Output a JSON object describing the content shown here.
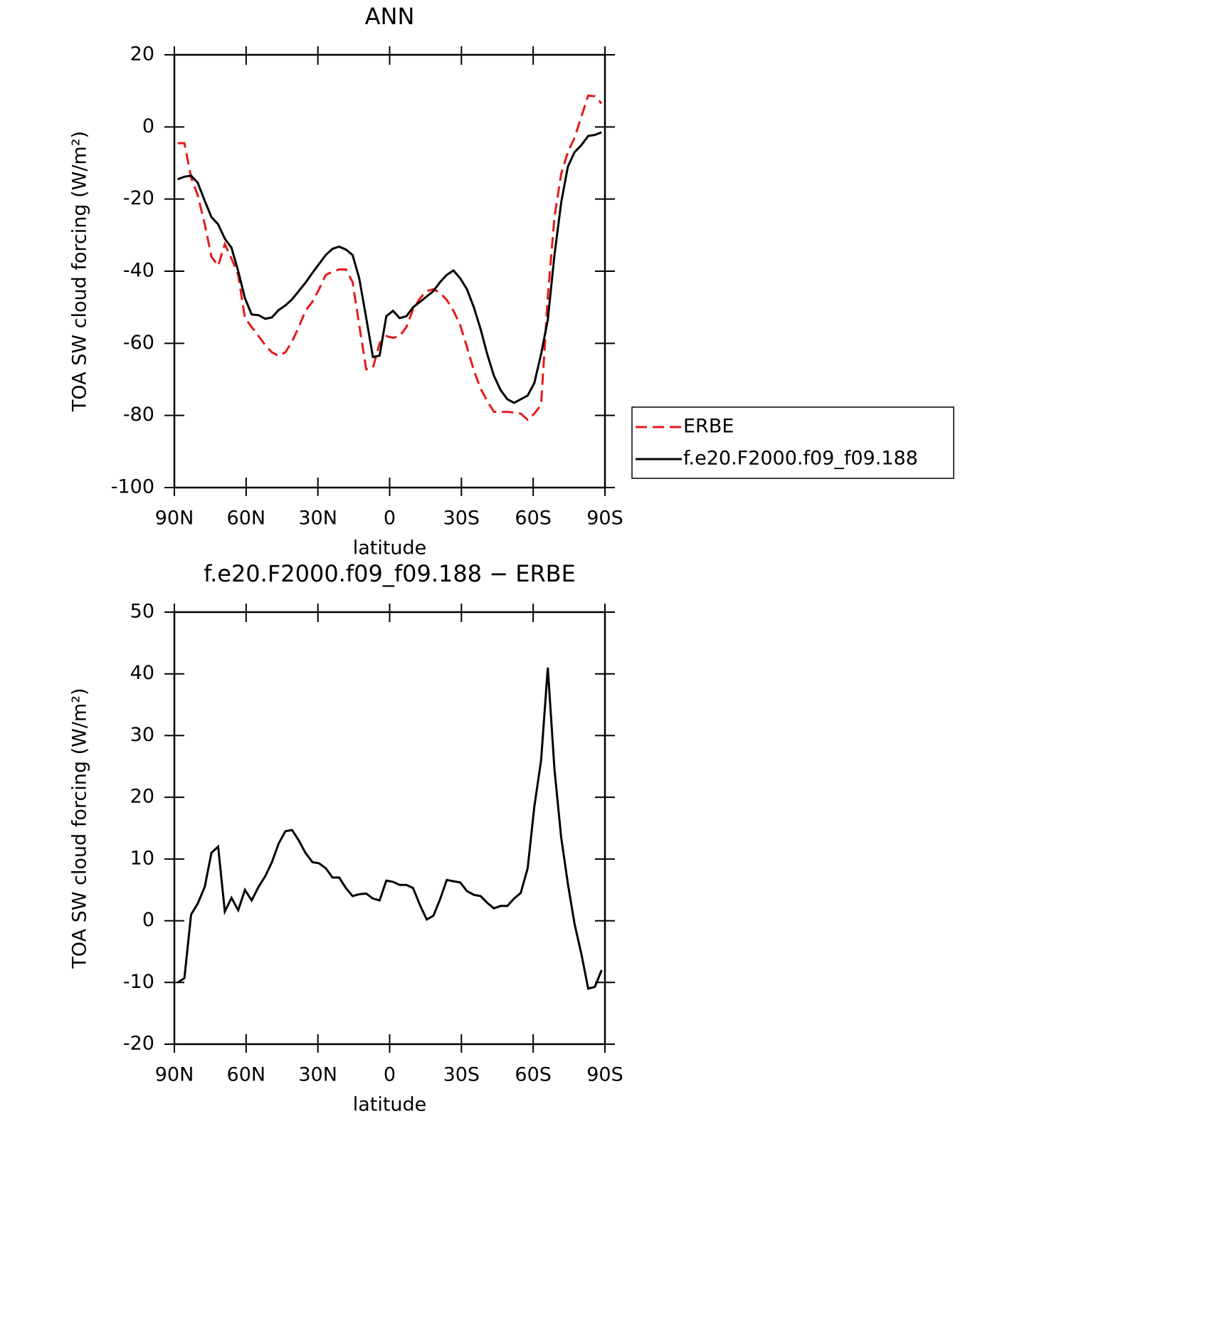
{
  "chart_data": [
    {
      "type": "line",
      "title": "ANN",
      "xlabel": "latitude",
      "ylabel": "TOA SW cloud forcing (W/m²)",
      "x": [
        88.6,
        85.8,
        83.0,
        80.2,
        77.3,
        74.5,
        71.7,
        68.9,
        66.1,
        63.3,
        60.5,
        57.7,
        54.8,
        52.0,
        49.2,
        46.4,
        43.6,
        40.8,
        38.0,
        35.2,
        32.3,
        29.5,
        26.7,
        23.9,
        21.1,
        18.3,
        15.5,
        12.7,
        9.8,
        7.0,
        4.2,
        1.4,
        -1.4,
        -4.2,
        -7.0,
        -9.8,
        -12.7,
        -15.5,
        -18.3,
        -21.1,
        -23.9,
        -26.7,
        -29.5,
        -32.3,
        -35.2,
        -38.0,
        -40.8,
        -43.6,
        -46.4,
        -49.2,
        -52.0,
        -54.8,
        -57.7,
        -60.5,
        -63.3,
        -66.1,
        -68.9,
        -71.7,
        -74.5,
        -77.3,
        -80.2,
        -83.0,
        -85.8,
        -88.6
      ],
      "series": [
        {
          "name": "ERBE",
          "color": "#e41a1c",
          "dashed": true,
          "values": [
            -4.5,
            -4.5,
            -14,
            -19,
            -27,
            -36,
            -38.5,
            -32.5,
            -36.5,
            -41,
            -53,
            -55.5,
            -58,
            -60.5,
            -62.5,
            -63.5,
            -62.5,
            -59.5,
            -55.5,
            -51,
            -48.5,
            -45,
            -41,
            -40.2,
            -39.5,
            -39.5,
            -43,
            -55,
            -67.2,
            -66.8,
            -60,
            -58,
            -58.5,
            -58,
            -55.5,
            -50.5,
            -47.5,
            -45.5,
            -45,
            -46,
            -48,
            -51,
            -55,
            -61,
            -67.5,
            -72.5,
            -76,
            -79,
            -79,
            -79,
            -79.2,
            -79.5,
            -81.2,
            -79.5,
            -77,
            -47,
            -25,
            -13,
            -7,
            -3,
            3,
            8.7,
            8.5,
            6.5
          ]
        },
        {
          "name": "f.e20.F2000.f09_f09.188",
          "color": "#000000",
          "dashed": false,
          "values": [
            -14.5,
            -13.8,
            -13.5,
            -15.5,
            -20.5,
            -25,
            -27,
            -31,
            -33.5,
            -40,
            -47.5,
            -52,
            -52.2,
            -53.2,
            -52.8,
            -50.8,
            -49.5,
            -47.8,
            -45.5,
            -43.2,
            -40.5,
            -38,
            -35.5,
            -33.8,
            -33.2,
            -34,
            -35.5,
            -42,
            -53,
            -63.8,
            -63.4,
            -52.5,
            -51,
            -53,
            -52.5,
            -50,
            -48.5,
            -47,
            -45.5,
            -43,
            -41,
            -39.8,
            -42,
            -45,
            -50,
            -56,
            -63,
            -69,
            -73,
            -75.5,
            -76.5,
            -75.5,
            -74.5,
            -71,
            -63,
            -53.5,
            -35.5,
            -21,
            -11,
            -7,
            -5,
            -2.5,
            -2.2,
            -1.5
          ]
        }
      ],
      "xlim": [
        90,
        -90
      ],
      "xticks": [
        {
          "value": 90,
          "label": "90N"
        },
        {
          "value": 60,
          "label": "60N"
        },
        {
          "value": 30,
          "label": "30N"
        },
        0,
        {
          "value": -30,
          "label": "30S"
        },
        {
          "value": -60,
          "label": "60S"
        },
        {
          "value": -90,
          "label": "90S"
        }
      ],
      "ylim": [
        -100,
        20
      ],
      "yticks": [
        20,
        0,
        -20,
        -40,
        -60,
        -80,
        -100
      ],
      "legend": "right"
    },
    {
      "type": "line",
      "title": "f.e20.F2000.f09_f09.188 − ERBE",
      "xlabel": "latitude",
      "ylabel": "TOA SW cloud forcing (W/m²)",
      "x": [
        88.6,
        85.8,
        83.0,
        80.2,
        77.3,
        74.5,
        71.7,
        68.9,
        66.1,
        63.3,
        60.5,
        57.7,
        54.8,
        52.0,
        49.2,
        46.4,
        43.6,
        40.8,
        38.0,
        35.2,
        32.3,
        29.5,
        26.7,
        23.9,
        21.1,
        18.3,
        15.5,
        12.7,
        9.8,
        7.0,
        4.2,
        1.4,
        -1.4,
        -4.2,
        -7.0,
        -9.8,
        -12.7,
        -15.5,
        -18.3,
        -21.1,
        -23.9,
        -26.7,
        -29.5,
        -32.3,
        -35.2,
        -38.0,
        -40.8,
        -43.6,
        -46.4,
        -49.2,
        -52.0,
        -54.8,
        -57.7,
        -60.5,
        -63.3,
        -66.1,
        -68.9,
        -71.7,
        -74.5,
        -77.3,
        -80.2,
        -83.0,
        -85.8,
        -88.6
      ],
      "series": [
        {
          "color": "#000000",
          "dashed": false,
          "values": [
            -10,
            -9.3,
            1,
            2.8,
            5.5,
            11,
            12,
            1.5,
            3.7,
            1.7,
            5,
            3.3,
            5.5,
            7.2,
            9.5,
            12.5,
            14.5,
            14.7,
            13,
            11,
            9.5,
            9.3,
            8.5,
            7,
            7,
            5.3,
            4,
            4.3,
            4.4,
            3.6,
            3.3,
            6.5,
            6.3,
            5.8,
            5.8,
            5.3,
            2.5,
            0.2,
            0.8,
            3.5,
            6.6,
            6.4,
            6.2,
            4.8,
            4.2,
            4,
            2.9,
            2,
            2.4,
            2.4,
            3.6,
            4.5,
            8.5,
            18.5,
            26,
            41,
            24.5,
            13.5,
            6,
            -0.5,
            -5.5,
            -11,
            -10.7,
            -8
          ]
        }
      ],
      "xlim": [
        90,
        -90
      ],
      "xticks": [
        {
          "value": 90,
          "label": "90N"
        },
        {
          "value": 60,
          "label": "60N"
        },
        {
          "value": 30,
          "label": "30N"
        },
        0,
        {
          "value": -30,
          "label": "30S"
        },
        {
          "value": -60,
          "label": "60S"
        },
        {
          "value": -90,
          "label": "90S"
        }
      ],
      "ylim": [
        -20,
        50
      ],
      "yticks": [
        50,
        40,
        30,
        20,
        10,
        0,
        -10,
        -20
      ]
    }
  ]
}
